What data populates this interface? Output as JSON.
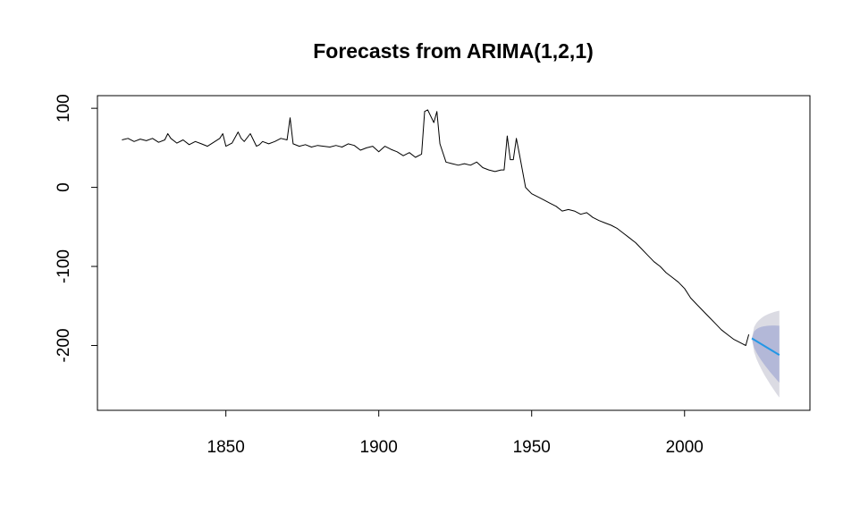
{
  "chart_data": {
    "type": "line",
    "title": "Forecasts from ARIMA(1,2,1)",
    "xlabel": "",
    "ylabel": "",
    "xlim": [
      1808,
      2041
    ],
    "ylim": [
      -282,
      116
    ],
    "x_ticks": [
      1850,
      1900,
      1950,
      2000
    ],
    "y_ticks": [
      100,
      0,
      -100,
      -200
    ],
    "grid": false,
    "legend": "none",
    "colors": {
      "series": "#000000",
      "forecast": "#2297E6",
      "band_80": "#B3B8D8",
      "band_95": "#DBDBE3",
      "axis": "#000000"
    },
    "series": [
      {
        "x": [
          1816,
          1818,
          1820,
          1822,
          1824,
          1826,
          1828,
          1830,
          1831,
          1832,
          1834,
          1836,
          1838,
          1840,
          1842,
          1844,
          1846,
          1848,
          1849,
          1850,
          1852,
          1854,
          1855,
          1856,
          1858,
          1860,
          1861,
          1862,
          1864,
          1866,
          1868,
          1870,
          1871,
          1872,
          1874,
          1876,
          1878,
          1880,
          1882,
          1884,
          1886,
          1888,
          1890,
          1892,
          1894,
          1896,
          1898,
          1900,
          1902,
          1904,
          1906,
          1908,
          1910,
          1912,
          1914,
          1915,
          1916,
          1918,
          1919,
          1920,
          1922,
          1924,
          1926,
          1928,
          1930,
          1932,
          1934,
          1936,
          1938,
          1940,
          1941,
          1942,
          1943,
          1944,
          1945,
          1946,
          1948,
          1950,
          1952,
          1954,
          1956,
          1958,
          1960,
          1962,
          1964,
          1966,
          1968,
          1970,
          1972,
          1974,
          1976,
          1978,
          1980,
          1982,
          1984,
          1986,
          1988,
          1990,
          1992,
          1994,
          1996,
          1998,
          2000,
          2002,
          2004,
          2006,
          2008,
          2010,
          2012,
          2014,
          2016,
          2018,
          2019,
          2020,
          2021
        ],
        "values": [
          60,
          62,
          58,
          61,
          59,
          62,
          57,
          60,
          68,
          62,
          56,
          60,
          54,
          58,
          55,
          52,
          57,
          62,
          68,
          52,
          56,
          70,
          62,
          58,
          68,
          52,
          54,
          58,
          55,
          58,
          62,
          60,
          88,
          55,
          52,
          54,
          51,
          53,
          52,
          51,
          53,
          51,
          55,
          53,
          47,
          50,
          52,
          45,
          52,
          48,
          45,
          40,
          44,
          38,
          42,
          96,
          98,
          82,
          96,
          55,
          32,
          30,
          28,
          30,
          28,
          32,
          25,
          22,
          20,
          22,
          22,
          65,
          35,
          35,
          62,
          42,
          0,
          -8,
          -12,
          -16,
          -20,
          -24,
          -30,
          -28,
          -30,
          -34,
          -32,
          -38,
          -42,
          -45,
          -48,
          -52,
          -58,
          -64,
          -70,
          -78,
          -86,
          -94,
          -100,
          -108,
          -114,
          -120,
          -128,
          -140,
          -148,
          -156,
          -164,
          -172,
          -180,
          -186,
          -192,
          -196,
          -198,
          -200,
          -186
        ]
      }
    ],
    "forecast": {
      "x": [
        2022,
        2031
      ],
      "values": [
        -191,
        -212
      ],
      "lower_80": [
        -191,
        -247
      ],
      "upper_80": [
        -191,
        -175
      ],
      "lower_95": [
        -191,
        -266
      ],
      "upper_95": [
        -191,
        -156
      ]
    }
  }
}
